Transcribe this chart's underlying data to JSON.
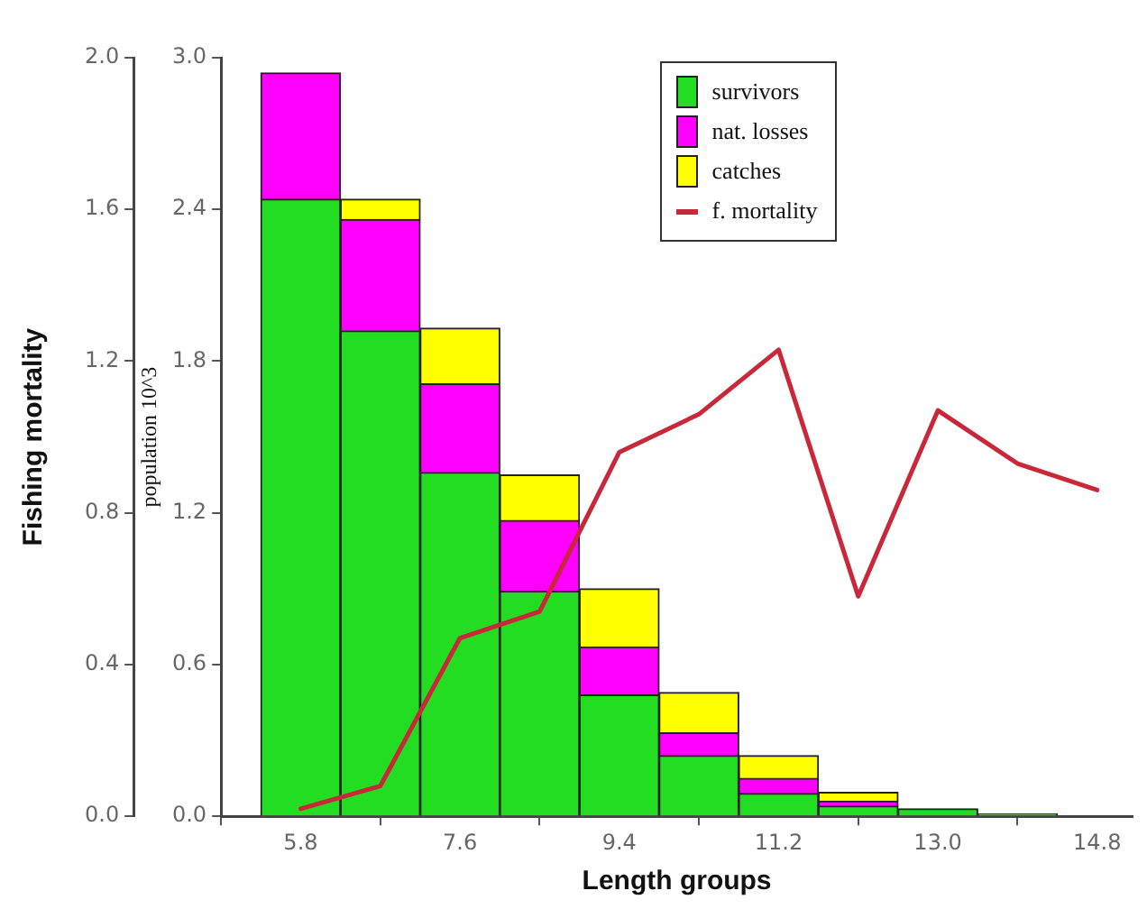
{
  "chart_data": {
    "type": "bar",
    "stacked": true,
    "xlabel": "Length groups",
    "ylabel": "population 10^3",
    "y2label": "Fishing mortality",
    "x": [
      5.8,
      6.7,
      7.6,
      8.5,
      9.4,
      10.3,
      11.2,
      12.1,
      13.0,
      13.9
    ],
    "xlim": [
      4.9,
      15.2
    ],
    "xticks": [
      5.8,
      7.6,
      9.4,
      11.2,
      {
        "value": 13,
        "label": "13.0"
      },
      14.8
    ],
    "ylim": [
      0,
      3
    ],
    "yticks": [
      {
        "value": 0,
        "label": "0.0"
      },
      0.6,
      1.2,
      1.8,
      2.4,
      {
        "value": 3,
        "label": "3.0"
      }
    ],
    "y2lim": [
      0,
      2
    ],
    "y2ticks": [
      {
        "value": 0,
        "label": "0.0"
      },
      0.4,
      0.8,
      1.2,
      1.6,
      {
        "value": 2,
        "label": "2.0"
      }
    ],
    "grid": false,
    "legend": "top",
    "marker": "none",
    "line_style": "solid",
    "series": [
      {
        "name": "survivors",
        "color": "#22dd22",
        "values": [
          2.44,
          1.92,
          1.36,
          0.89,
          0.48,
          0.24,
          0.09,
          0.04,
          0.03,
          0.01
        ]
      },
      {
        "name": "nat. losses",
        "color": "#ff00ff",
        "values": [
          0.5,
          0.44,
          0.35,
          0.28,
          0.19,
          0.09,
          0.06,
          0.02,
          null,
          null
        ]
      },
      {
        "name": "catches",
        "color": "#ffff00",
        "values": [
          null,
          0.08,
          0.22,
          0.18,
          0.23,
          0.16,
          0.09,
          0.035,
          null,
          null
        ]
      },
      {
        "name": "f. mortality",
        "type": "line",
        "axis": "y2",
        "color": "#c8283a",
        "x": [
          5.8,
          6.7,
          7.6,
          8.5,
          9.4,
          10.3,
          11.2,
          12.1,
          13.0,
          13.9,
          14.8
        ],
        "values": [
          0.02,
          0.08,
          0.47,
          0.54,
          0.96,
          1.06,
          1.23,
          0.58,
          1.07,
          0.93,
          0.86
        ]
      }
    ]
  }
}
